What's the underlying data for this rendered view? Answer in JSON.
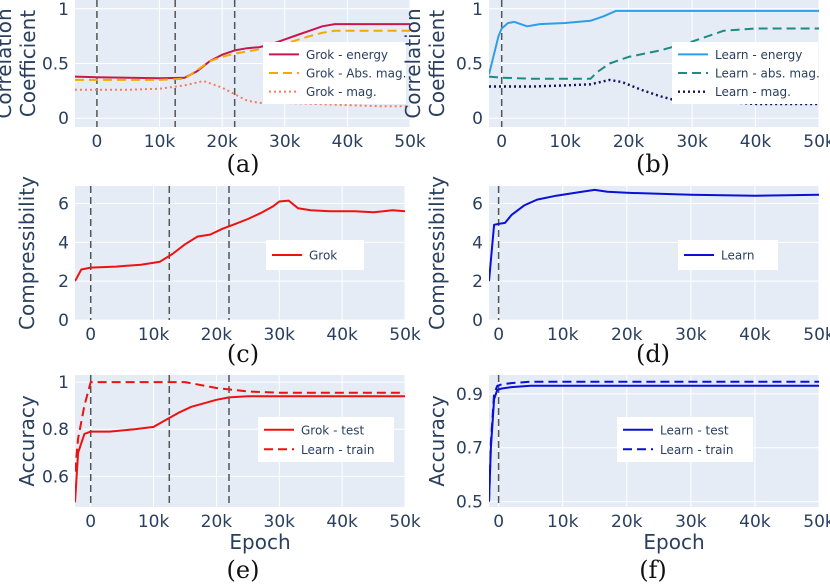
{
  "figure": {
    "colors": {
      "plot_bg": "#e5ecf6",
      "grid": "#ffffff",
      "axis_text": "#2a3f5f",
      "vline": "#555555"
    }
  },
  "chart_data": [
    {
      "id": "a",
      "type": "line",
      "caption": "(a)",
      "ylabel": [
        "Correlation",
        "Coefficient"
      ],
      "xlabel": "",
      "xlim": [
        -3500,
        50000
      ],
      "ylim": [
        -0.08,
        1.08
      ],
      "xticks": [
        0,
        10000,
        20000,
        30000,
        40000,
        50000
      ],
      "xtick_labels": [
        "0",
        "10k",
        "20k",
        "30k",
        "40k",
        "50k"
      ],
      "yticks": [
        0,
        0.5,
        1
      ],
      "ytick_labels": [
        "0",
        "0.5",
        "1"
      ],
      "vlines": [
        0,
        12500,
        22000
      ],
      "legend_position": "right",
      "series": [
        {
          "name": "Grok - energy",
          "color": "#c8174e",
          "dash": "solid",
          "width": 2,
          "x": [
            -3500,
            0,
            5000,
            10000,
            14000,
            16000,
            18000,
            20000,
            22000,
            24000,
            26000,
            28000,
            30000,
            32000,
            34000,
            36000,
            38000,
            40000,
            45000,
            50000
          ],
          "y": [
            0.38,
            0.375,
            0.37,
            0.365,
            0.37,
            0.43,
            0.52,
            0.58,
            0.62,
            0.64,
            0.65,
            0.68,
            0.72,
            0.76,
            0.8,
            0.84,
            0.86,
            0.86,
            0.86,
            0.86
          ]
        },
        {
          "name": "Grok - Abs. mag.",
          "color": "#f2a900",
          "dash": "dashed",
          "width": 2,
          "x": [
            -3500,
            0,
            5000,
            10000,
            14000,
            16000,
            18000,
            20000,
            22000,
            26000,
            30000,
            34000,
            36000,
            38000,
            40000,
            45000,
            50000
          ],
          "y": [
            0.35,
            0.35,
            0.35,
            0.35,
            0.36,
            0.44,
            0.52,
            0.56,
            0.59,
            0.63,
            0.68,
            0.75,
            0.78,
            0.8,
            0.8,
            0.8,
            0.8
          ]
        },
        {
          "name": "Grok - mag.",
          "color": "#f77b5c",
          "dash": "dotted",
          "width": 2,
          "x": [
            -3500,
            0,
            5000,
            10000,
            14000,
            17000,
            20000,
            22000,
            24000,
            26000,
            30000,
            35000,
            40000,
            45000,
            50000
          ],
          "y": [
            0.26,
            0.26,
            0.26,
            0.27,
            0.3,
            0.34,
            0.28,
            0.22,
            0.16,
            0.14,
            0.14,
            0.13,
            0.12,
            0.11,
            0.11
          ]
        }
      ]
    },
    {
      "id": "b",
      "type": "line",
      "caption": "(b)",
      "ylabel": [
        "Correlation",
        "Coefficient"
      ],
      "xlabel": "",
      "xlim": [
        -2000,
        50000
      ],
      "ylim": [
        -0.08,
        1.08
      ],
      "xticks": [
        0,
        10000,
        20000,
        30000,
        40000,
        50000
      ],
      "xtick_labels": [
        "0",
        "10k",
        "20k",
        "30k",
        "40k",
        "50k"
      ],
      "yticks": [
        0,
        0.5,
        1
      ],
      "ytick_labels": [
        "0",
        "0.5",
        "1"
      ],
      "vlines": [
        0
      ],
      "legend_position": "right",
      "series": [
        {
          "name": "Learn - energy",
          "color": "#2f9ee8",
          "dash": "solid",
          "width": 2,
          "x": [
            -2000,
            -500,
            0,
            1000,
            2000,
            4000,
            6000,
            10000,
            14000,
            16000,
            18000,
            20000,
            30000,
            40000,
            50000
          ],
          "y": [
            0.4,
            0.75,
            0.82,
            0.87,
            0.88,
            0.84,
            0.86,
            0.87,
            0.89,
            0.93,
            0.98,
            0.98,
            0.98,
            0.98,
            0.98
          ]
        },
        {
          "name": "Learn - abs. mag.",
          "color": "#1f8a86",
          "dash": "dashed",
          "width": 2,
          "x": [
            -2000,
            0,
            5000,
            10000,
            14000,
            15000,
            17000,
            20000,
            25000,
            30000,
            35000,
            40000,
            45000,
            50000
          ],
          "y": [
            0.38,
            0.37,
            0.36,
            0.36,
            0.36,
            0.42,
            0.5,
            0.56,
            0.62,
            0.7,
            0.8,
            0.82,
            0.82,
            0.82
          ]
        },
        {
          "name": "Learn - mag.",
          "color": "#14145c",
          "dash": "dotted",
          "width": 2.4,
          "x": [
            -2000,
            0,
            5000,
            10000,
            14000,
            17000,
            19000,
            22000,
            25000,
            27000,
            30000,
            35000,
            40000,
            45000,
            50000
          ],
          "y": [
            0.29,
            0.29,
            0.29,
            0.3,
            0.31,
            0.35,
            0.33,
            0.26,
            0.2,
            0.17,
            0.16,
            0.15,
            0.13,
            0.13,
            0.13
          ]
        }
      ]
    },
    {
      "id": "c",
      "type": "line",
      "caption": "(c)",
      "ylabel": [
        "Compressibility"
      ],
      "xlabel": "",
      "xlim": [
        -2500,
        50000
      ],
      "ylim": [
        0,
        6.9
      ],
      "xticks": [
        0,
        10000,
        20000,
        30000,
        40000,
        50000
      ],
      "xtick_labels": [
        "0",
        "10k",
        "20k",
        "30k",
        "40k",
        "50k"
      ],
      "yticks": [
        0,
        2,
        4,
        6
      ],
      "ytick_labels": [
        "0",
        "2",
        "4",
        "6"
      ],
      "vlines": [
        0,
        12500,
        22000
      ],
      "legend_position": "center-right",
      "series": [
        {
          "name": "Grok",
          "color": "#ee1111",
          "dash": "solid",
          "width": 2,
          "x": [
            -2500,
            -1500,
            0,
            4000,
            8000,
            11000,
            13000,
            15000,
            17000,
            19000,
            21000,
            23000,
            25000,
            27000,
            29000,
            30000,
            31500,
            33000,
            35000,
            38000,
            42000,
            45000,
            48000,
            50000
          ],
          "y": [
            2.0,
            2.6,
            2.7,
            2.75,
            2.85,
            3.0,
            3.4,
            3.9,
            4.3,
            4.4,
            4.7,
            4.95,
            5.2,
            5.5,
            5.85,
            6.1,
            6.15,
            5.75,
            5.65,
            5.6,
            5.6,
            5.55,
            5.65,
            5.6
          ]
        }
      ]
    },
    {
      "id": "d",
      "type": "line",
      "caption": "(d)",
      "ylabel": [
        "Compressibility"
      ],
      "xlabel": "",
      "xlim": [
        -1500,
        50000
      ],
      "ylim": [
        0,
        6.9
      ],
      "xticks": [
        0,
        10000,
        20000,
        30000,
        40000,
        50000
      ],
      "xtick_labels": [
        "0",
        "10k",
        "20k",
        "30k",
        "40k",
        "50k"
      ],
      "yticks": [
        0,
        2,
        4,
        6
      ],
      "ytick_labels": [
        "0",
        "2",
        "4",
        "6"
      ],
      "vlines": [
        0
      ],
      "legend_position": "center-right",
      "series": [
        {
          "name": "Learn",
          "color": "#0a10d6",
          "dash": "solid",
          "width": 2,
          "x": [
            -1500,
            -700,
            0,
            1000,
            2000,
            4000,
            6000,
            9000,
            13000,
            15000,
            17000,
            20000,
            30000,
            40000,
            50000
          ],
          "y": [
            2.0,
            4.9,
            4.95,
            5.0,
            5.4,
            5.9,
            6.2,
            6.4,
            6.6,
            6.7,
            6.6,
            6.55,
            6.45,
            6.4,
            6.45
          ]
        }
      ]
    },
    {
      "id": "e",
      "type": "line",
      "caption": "(e)",
      "ylabel": [
        "Accuracy"
      ],
      "xlabel": "Epoch",
      "xlim": [
        -2500,
        50000
      ],
      "ylim": [
        0.47,
        1.03
      ],
      "xticks": [
        0,
        10000,
        20000,
        30000,
        40000,
        50000
      ],
      "xtick_labels": [
        "0",
        "10k",
        "20k",
        "30k",
        "40k",
        "50k"
      ],
      "yticks": [
        0.6,
        0.8,
        1
      ],
      "ytick_labels": [
        "0.6",
        "0.8",
        "1"
      ],
      "vlines": [
        0,
        12500,
        22000
      ],
      "legend_position": "right",
      "series": [
        {
          "name": "Grok - test",
          "color": "#ee1111",
          "dash": "solid",
          "width": 2,
          "x": [
            -2500,
            -2000,
            -1000,
            0,
            3000,
            7000,
            10000,
            12000,
            14000,
            16000,
            18000,
            20000,
            22000,
            25000,
            30000,
            40000,
            50000
          ],
          "y": [
            0.49,
            0.7,
            0.78,
            0.79,
            0.79,
            0.8,
            0.81,
            0.84,
            0.87,
            0.895,
            0.91,
            0.925,
            0.935,
            0.94,
            0.94,
            0.94,
            0.94
          ]
        },
        {
          "name": "Learn - train",
          "color": "#ee1111",
          "dash": "dashed",
          "width": 2,
          "x": [
            -2500,
            -2000,
            -1000,
            0,
            5000,
            10000,
            15000,
            20000,
            25000,
            30000,
            40000,
            50000
          ],
          "y": [
            0.62,
            0.76,
            0.9,
            1.0,
            1.0,
            1.0,
            1.0,
            0.975,
            0.96,
            0.955,
            0.955,
            0.955
          ]
        }
      ]
    },
    {
      "id": "f",
      "type": "line",
      "caption": "(f)",
      "ylabel": [
        "Accuracy"
      ],
      "xlabel": "Epoch",
      "xlim": [
        -1500,
        50000
      ],
      "ylim": [
        0.48,
        0.97
      ],
      "xticks": [
        0,
        10000,
        20000,
        30000,
        40000,
        50000
      ],
      "xtick_labels": [
        "0",
        "10k",
        "20k",
        "30k",
        "40k",
        "50k"
      ],
      "yticks": [
        0.5,
        0.7,
        0.9
      ],
      "ytick_labels": [
        "0.5",
        "0.7",
        "0.9"
      ],
      "vlines": [
        0
      ],
      "legend_position": "right",
      "series": [
        {
          "name": "Learn - test",
          "color": "#0a10d6",
          "dash": "solid",
          "width": 2,
          "x": [
            -1500,
            -1200,
            -700,
            -200,
            500,
            2000,
            5000,
            10000,
            20000,
            30000,
            40000,
            50000
          ],
          "y": [
            0.5,
            0.7,
            0.88,
            0.915,
            0.92,
            0.925,
            0.93,
            0.93,
            0.93,
            0.93,
            0.93,
            0.93
          ]
        },
        {
          "name": "Learn - train",
          "color": "#0a10d6",
          "dash": "dashed",
          "width": 2,
          "x": [
            -1500,
            -1200,
            -700,
            -200,
            500,
            2000,
            5000,
            10000,
            20000,
            30000,
            40000,
            50000
          ],
          "y": [
            0.5,
            0.72,
            0.9,
            0.93,
            0.935,
            0.94,
            0.945,
            0.945,
            0.945,
            0.945,
            0.945,
            0.945
          ]
        }
      ]
    }
  ]
}
